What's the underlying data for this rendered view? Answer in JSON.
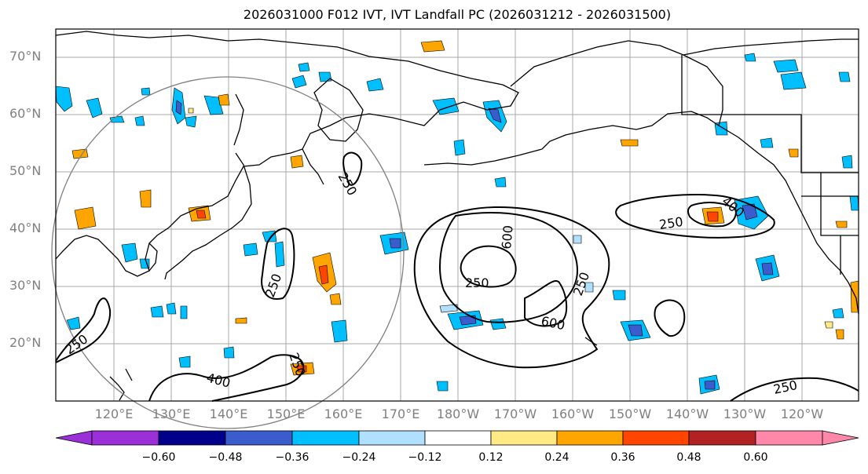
{
  "title": "2026031000 F012 IVT, IVT Landfall PC (2026031212 - 2026031500)",
  "lat_labels": [
    "70°N",
    "60°N",
    "50°N",
    "40°N",
    "30°N",
    "20°N"
  ],
  "lon_labels": [
    "120°E",
    "130°E",
    "140°E",
    "150°E",
    "160°E",
    "170°E",
    "180°W",
    "170°W",
    "160°W",
    "150°W",
    "140°W",
    "130°W",
    "120°W"
  ],
  "contour_labels": [
    "250",
    "250",
    "250",
    "250",
    "250",
    "250",
    "250",
    "250",
    "400",
    "400",
    "600",
    "600"
  ],
  "colorbar": {
    "tick_labels": [
      "−0.60",
      "−0.48",
      "−0.36",
      "−0.24",
      "−0.12",
      "0.12",
      "0.24",
      "0.36",
      "0.48",
      "0.60"
    ],
    "colors": [
      "#9b30d9",
      "#00008b",
      "#3a5ccc",
      "#00bfff",
      "#b0e0fe",
      "#ffffff",
      "#ffea86",
      "#ffa500",
      "#ff4500",
      "#b22222",
      "#ff88aa"
    ]
  },
  "palette": {
    "grid": "#a9a9a9",
    "coast": "#000000",
    "circle": "#808080",
    "tick_text": "#808080"
  }
}
